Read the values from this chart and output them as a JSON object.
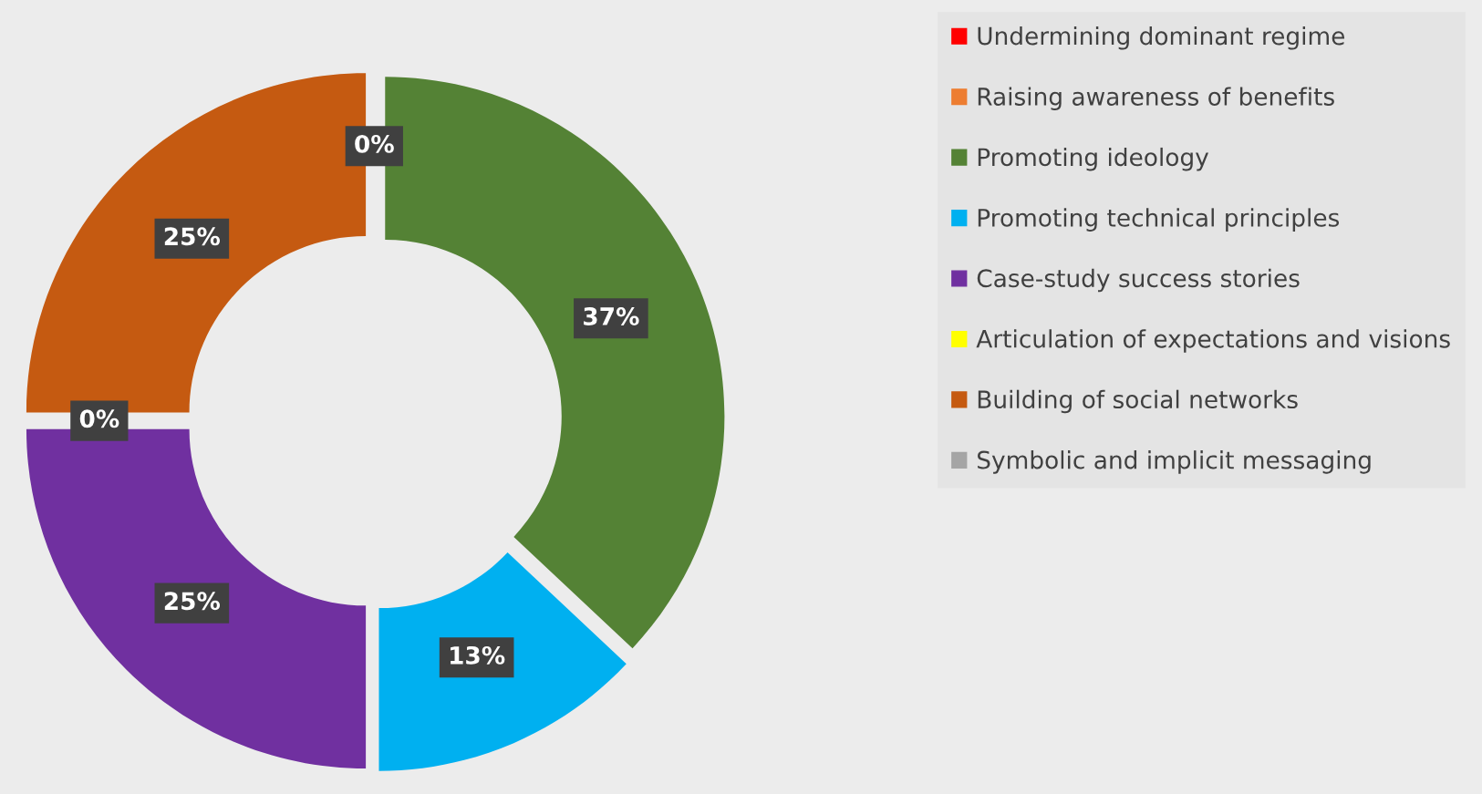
{
  "chart_data": {
    "type": "donut",
    "categories": [
      "Undermining dominant regime",
      "Raising awareness of benefits",
      "Promoting ideology",
      "Promoting technical principles",
      "Case-study success stories",
      "Articulation of expectations and visions",
      "Building of social networks",
      "Symbolic and implicit messaging"
    ],
    "values": [
      0,
      0,
      37,
      13,
      25,
      0,
      25,
      0
    ],
    "colors": [
      "#ff0000",
      "#ed7d31",
      "#548235",
      "#00b0f0",
      "#7030a0",
      "#ffff00",
      "#c55a11",
      "#a5a5a5"
    ],
    "value_labels": [
      null,
      null,
      "37%",
      "13%",
      "25%",
      "0%",
      "25%",
      "0%"
    ],
    "legend": "right"
  }
}
